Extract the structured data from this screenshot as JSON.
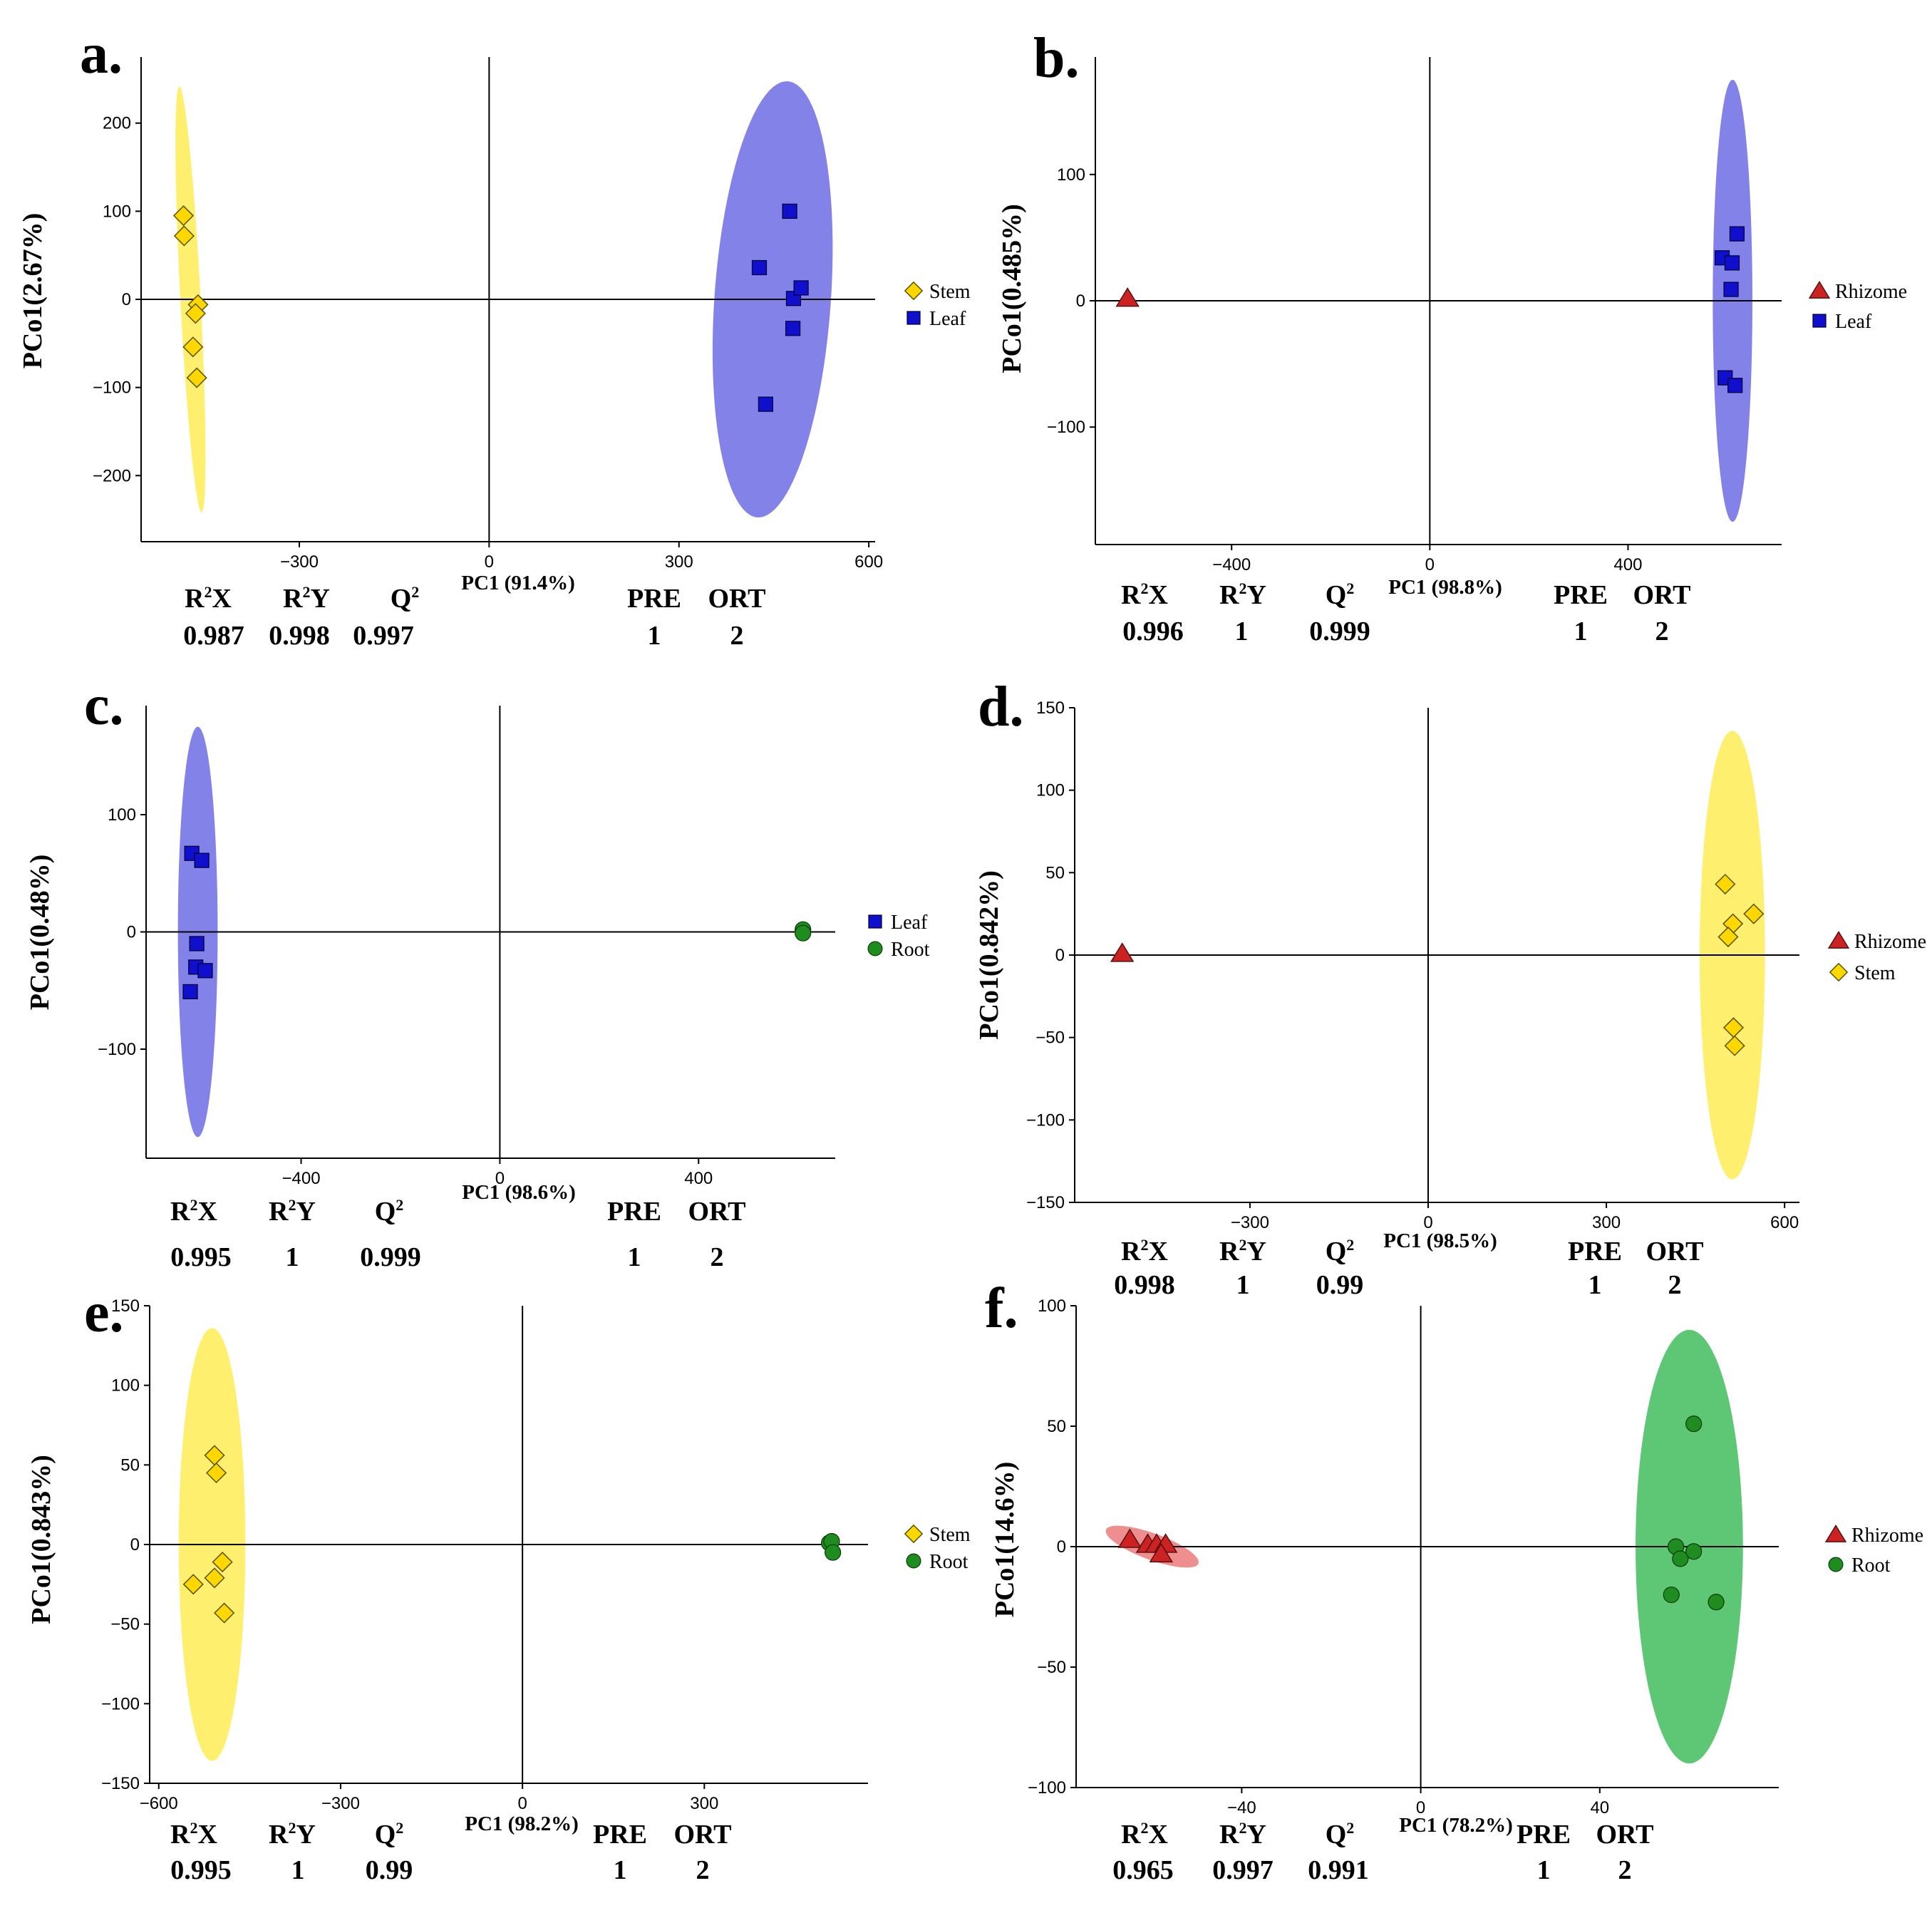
{
  "chart_data": [
    {
      "type": "scatter",
      "panel_label": "a.",
      "xlabel": "PC1 (91.4%)",
      "ylabel": "PCo1(2.67%)",
      "xlim": [
        -550,
        610
      ],
      "ylim": [
        -275,
        275
      ],
      "xticks": [
        -300,
        0,
        300,
        600
      ],
      "xtick_labels": [
        "−300",
        "0",
        "300",
        "600"
      ],
      "yticks": [
        -200,
        -100,
        0,
        100,
        200
      ],
      "ytick_labels": [
        "−200",
        "−100",
        "0",
        "100",
        "200"
      ],
      "series": [
        {
          "name": "Stem",
          "marker": "diamond",
          "color": "#FFD700",
          "ellipse_color": "#FFEE66",
          "ellipse": {
            "cx": -472,
            "cy": 0,
            "rx": 16,
            "ry": 242,
            "angle": -3
          },
          "x": [
            -483,
            -482,
            -460,
            -464,
            -468,
            -462
          ],
          "y": [
            95,
            72,
            -6,
            -16,
            -54,
            -89
          ]
        },
        {
          "name": "Leaf",
          "marker": "square",
          "color": "#1010CC",
          "ellipse_color": "#7B7BE8",
          "ellipse": {
            "cx": 448,
            "cy": 0,
            "rx": 92,
            "ry": 248,
            "angle": 4
          },
          "x": [
            475,
            427,
            481,
            493,
            480,
            437
          ],
          "y": [
            100,
            36,
            1,
            13,
            -33,
            -119
          ]
        }
      ],
      "stats": {
        "headers": [
          "R²X",
          "R²Y",
          "Q²",
          "PRE",
          "ORT"
        ],
        "values": [
          "0.987",
          "0.998",
          "0.997",
          "1",
          "2"
        ]
      }
    },
    {
      "type": "scatter",
      "panel_label": "b.",
      "xlabel": "PC1 (98.8%)",
      "ylabel": "PCo1(0.485%)",
      "xlim": [
        -675,
        710
      ],
      "ylim": [
        -193,
        193
      ],
      "xticks": [
        -400,
        0,
        400
      ],
      "xtick_labels": [
        "−400",
        "0",
        "400"
      ],
      "yticks": [
        -100,
        0,
        100
      ],
      "ytick_labels": [
        "−100",
        "0",
        "100"
      ],
      "series": [
        {
          "name": "Rhizome",
          "marker": "triangle",
          "color": "#CC2222",
          "ellipse_color": "#EE8888",
          "ellipse": null,
          "x": [
            -610
          ],
          "y": [
            2
          ]
        },
        {
          "name": "Leaf",
          "marker": "square",
          "color": "#1010CC",
          "ellipse_color": "#7B7BE8",
          "ellipse": {
            "cx": 611,
            "cy": 0,
            "rx": 40,
            "ry": 175,
            "angle": 0
          },
          "x": [
            620,
            590,
            610,
            608,
            596,
            616
          ],
          "y": [
            53,
            34,
            30,
            9,
            -61,
            -67
          ]
        }
      ],
      "stats": {
        "headers": [
          "R²X",
          "R²Y",
          "Q²",
          "PRE",
          "ORT"
        ],
        "values": [
          "0.996",
          "1",
          "0.999",
          "1",
          "2"
        ]
      }
    },
    {
      "type": "scatter",
      "panel_label": "c.",
      "xlabel": "PC1 (98.6%)",
      "ylabel": "PCo1(0.48%)",
      "xlim": [
        -712,
        675
      ],
      "ylim": [
        -193,
        193
      ],
      "xticks": [
        -400,
        0,
        400
      ],
      "xtick_labels": [
        "−400",
        "0",
        "400"
      ],
      "yticks": [
        -100,
        0,
        100
      ],
      "ytick_labels": [
        "−100",
        "0",
        "100"
      ],
      "series": [
        {
          "name": "Leaf",
          "marker": "square",
          "color": "#1010CC",
          "ellipse_color": "#7B7BE8",
          "ellipse": {
            "cx": -608,
            "cy": 0,
            "rx": 40,
            "ry": 175,
            "angle": 0
          },
          "x": [
            -620,
            -600,
            -610,
            -612,
            -593,
            -623
          ],
          "y": [
            67,
            61,
            -10,
            -30,
            -33,
            -51
          ]
        },
        {
          "name": "Root",
          "marker": "circle",
          "color": "#1E8C1E",
          "ellipse_color": "#55C46F",
          "ellipse": null,
          "x": [
            610,
            610
          ],
          "y": [
            2,
            -1
          ]
        }
      ],
      "stats": {
        "headers": [
          "R²X",
          "R²Y",
          "Q²",
          "PRE",
          "ORT"
        ],
        "values": [
          "0.995",
          "1",
          "0.999",
          "1",
          "2"
        ]
      }
    },
    {
      "type": "scatter",
      "panel_label": "d.",
      "xlabel": "PC1 (98.5%)",
      "ylabel": "PCo1(0.842%)",
      "xlim": [
        -595,
        625
      ],
      "ylim": [
        -150,
        150
      ],
      "xticks": [
        -300,
        0,
        300,
        600
      ],
      "xtick_labels": [
        "−300",
        "0",
        "300",
        "600"
      ],
      "yticks": [
        -150,
        -100,
        -50,
        0,
        50,
        100,
        150
      ],
      "ytick_labels": [
        "−150",
        "−100",
        "−50",
        "0",
        "50",
        "100",
        "150"
      ],
      "series": [
        {
          "name": "Rhizome",
          "marker": "triangle",
          "color": "#CC2222",
          "ellipse_color": "#EE8888",
          "ellipse": null,
          "x": [
            -515
          ],
          "y": [
            1
          ]
        },
        {
          "name": "Stem",
          "marker": "diamond",
          "color": "#FFD700",
          "ellipse_color": "#FFEE66",
          "ellipse": {
            "cx": 512,
            "cy": 0,
            "rx": 55,
            "ry": 136,
            "angle": 0
          },
          "x": [
            500,
            513,
            548,
            505,
            514,
            516
          ],
          "y": [
            43,
            19,
            25,
            11,
            -44,
            -55
          ]
        }
      ],
      "stats": {
        "headers": [
          "R²X",
          "R²Y",
          "Q²",
          "PRE",
          "ORT"
        ],
        "values": [
          "0.998",
          "1",
          "0.99",
          "1",
          "2"
        ]
      }
    },
    {
      "type": "scatter",
      "panel_label": "e.",
      "xlabel": "PC1 (98.2%)",
      "ylabel": "PCo1(0.843%)",
      "xlim": [
        -615,
        570
      ],
      "ylim": [
        -150,
        150
      ],
      "xticks": [
        -600,
        -300,
        0,
        300
      ],
      "xtick_labels": [
        "−600",
        "−300",
        "0",
        "300"
      ],
      "yticks": [
        -150,
        -100,
        -50,
        0,
        50,
        100,
        150
      ],
      "ytick_labels": [
        "−150",
        "−100",
        "−50",
        "0",
        "50",
        "100",
        "150"
      ],
      "series": [
        {
          "name": "Stem",
          "marker": "diamond",
          "color": "#FFD700",
          "ellipse_color": "#FFEE66",
          "ellipse": {
            "cx": -512,
            "cy": 0,
            "rx": 55,
            "ry": 136,
            "angle": 0
          },
          "x": [
            -508,
            -505,
            -495,
            -543,
            -508,
            -492
          ],
          "y": [
            56,
            45,
            -11,
            -25,
            -21,
            -43
          ]
        },
        {
          "name": "Root",
          "marker": "circle",
          "color": "#1E8C1E",
          "ellipse_color": "#55C46F",
          "ellipse": null,
          "x": [
            506,
            510,
            512
          ],
          "y": [
            1,
            2,
            -5
          ]
        }
      ],
      "stats": {
        "headers": [
          "R²X",
          "R²Y",
          "Q²",
          "PRE",
          "ORT"
        ],
        "values": [
          "0.995",
          "1",
          "0.99",
          "1",
          "2"
        ]
      }
    },
    {
      "type": "scatter",
      "panel_label": "f.",
      "xlabel": "PC1 (78.2%)",
      "ylabel": "PCo1(14.6%)",
      "xlim": [
        -77,
        80
      ],
      "ylim": [
        -100,
        100
      ],
      "xticks": [
        -40,
        0,
        40
      ],
      "xtick_labels": [
        "−40",
        "0",
        "40"
      ],
      "yticks": [
        -100,
        -50,
        0,
        50,
        100
      ],
      "ytick_labels": [
        "−100",
        "−50",
        "0",
        "50",
        "100"
      ],
      "series": [
        {
          "name": "Rhizome",
          "marker": "triangle",
          "color": "#CC2222",
          "ellipse_color": "#EE8888",
          "ellipse": {
            "cx": -60,
            "cy": 0,
            "rx": 11,
            "ry": 5.5,
            "angle": 20
          },
          "x": [
            -65,
            -61,
            -59,
            -57,
            -58
          ],
          "y": [
            3,
            1,
            1,
            1,
            -3
          ]
        },
        {
          "name": "Root",
          "marker": "circle",
          "color": "#1E8C1E",
          "ellipse_color": "#55C46F",
          "ellipse": {
            "cx": 60,
            "cy": 0,
            "rx": 12,
            "ry": 90,
            "angle": 0
          },
          "x": [
            61,
            57,
            58,
            61,
            56,
            66
          ],
          "y": [
            51,
            0,
            -5,
            -2,
            -20,
            -23
          ]
        }
      ],
      "stats": {
        "headers": [
          "R²X",
          "R²Y",
          "Q²",
          "PRE",
          "ORT"
        ],
        "values": [
          "0.965",
          "0.997",
          "0.991",
          "1",
          "2"
        ]
      }
    }
  ]
}
